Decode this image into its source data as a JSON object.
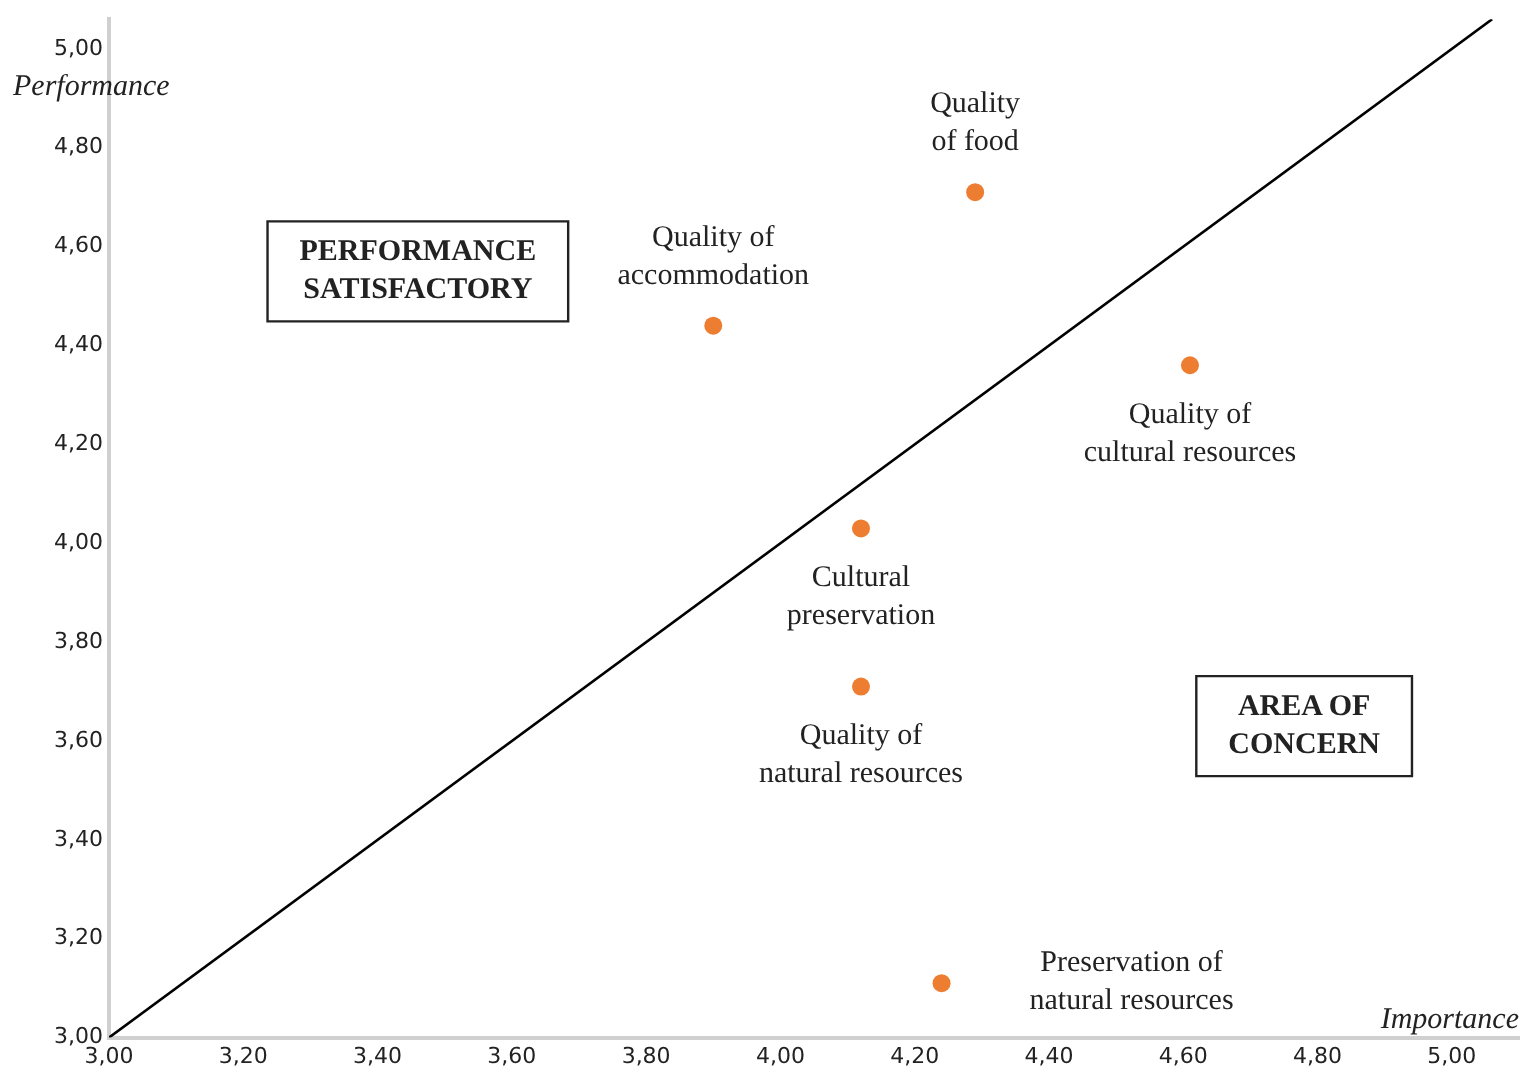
{
  "chart_data": {
    "type": "scatter",
    "xlabel": "Importance",
    "ylabel": "Performance",
    "x": [
      4.29,
      3.9,
      4.61,
      4.12,
      4.12,
      4.24
    ],
    "series": [
      {
        "color": "#ed7d31",
        "marker": "circle",
        "values": [
          4.71,
          4.44,
          4.36,
          4.03,
          3.71,
          3.11
        ]
      },
      {
        "type": "line",
        "marker": "none",
        "color": "#000000",
        "x": [
          3,
          5.06
        ],
        "values": [
          3,
          5.06
        ]
      }
    ],
    "grid": false,
    "legend": false,
    "xlim": [
      3,
      5.1
    ],
    "ylim": [
      3,
      5.06
    ],
    "xticks": [
      {
        "value": 3,
        "label": "3,00"
      },
      {
        "value": 3.2,
        "label": "3,20"
      },
      {
        "value": 3.4,
        "label": "3,40"
      },
      {
        "value": 3.6,
        "label": "3,60"
      },
      {
        "value": 3.8,
        "label": "3,80"
      },
      {
        "value": 4,
        "label": "4,00"
      },
      {
        "value": 4.2,
        "label": "4,20"
      },
      {
        "value": 4.4,
        "label": "4,40"
      },
      {
        "value": 4.6,
        "label": "4,60"
      },
      {
        "value": 4.8,
        "label": "4,80"
      },
      {
        "value": 5,
        "label": "5,00"
      }
    ],
    "yticks": [
      {
        "value": 3,
        "label": "3,00"
      },
      {
        "value": 3.2,
        "label": "3,20"
      },
      {
        "value": 3.4,
        "label": "3,40"
      },
      {
        "value": 3.6,
        "label": "3,60"
      },
      {
        "value": 3.8,
        "label": "3,80"
      },
      {
        "value": 4,
        "label": "4,00"
      },
      {
        "value": 4.2,
        "label": "4,20"
      },
      {
        "value": 4.4,
        "label": "4,40"
      },
      {
        "value": 4.6,
        "label": "4,60"
      },
      {
        "value": 4.8,
        "label": "4,80"
      },
      {
        "value": 5,
        "label": "5,00"
      }
    ],
    "annotations": [
      {
        "text": "Quality\nof food",
        "x": 4.29,
        "y": 4.71
      },
      {
        "text": "Quality of\naccommodation",
        "x": 3.9,
        "y": 4.44
      },
      {
        "text": "Quality of\ncultural resources",
        "x": 4.61,
        "y": 4.36
      },
      {
        "text": "Cultural\npreservation",
        "x": 4.12,
        "y": 4.03
      },
      {
        "text": "Quality of\nnatural resources",
        "x": 4.12,
        "y": 3.71
      },
      {
        "text": "Preservation of\nnatural resources",
        "x": 4.24,
        "y": 3.11
      },
      "PERFORMANCE\nSATISFACTORY",
      "AREA OF\nCONCERN"
    ]
  }
}
